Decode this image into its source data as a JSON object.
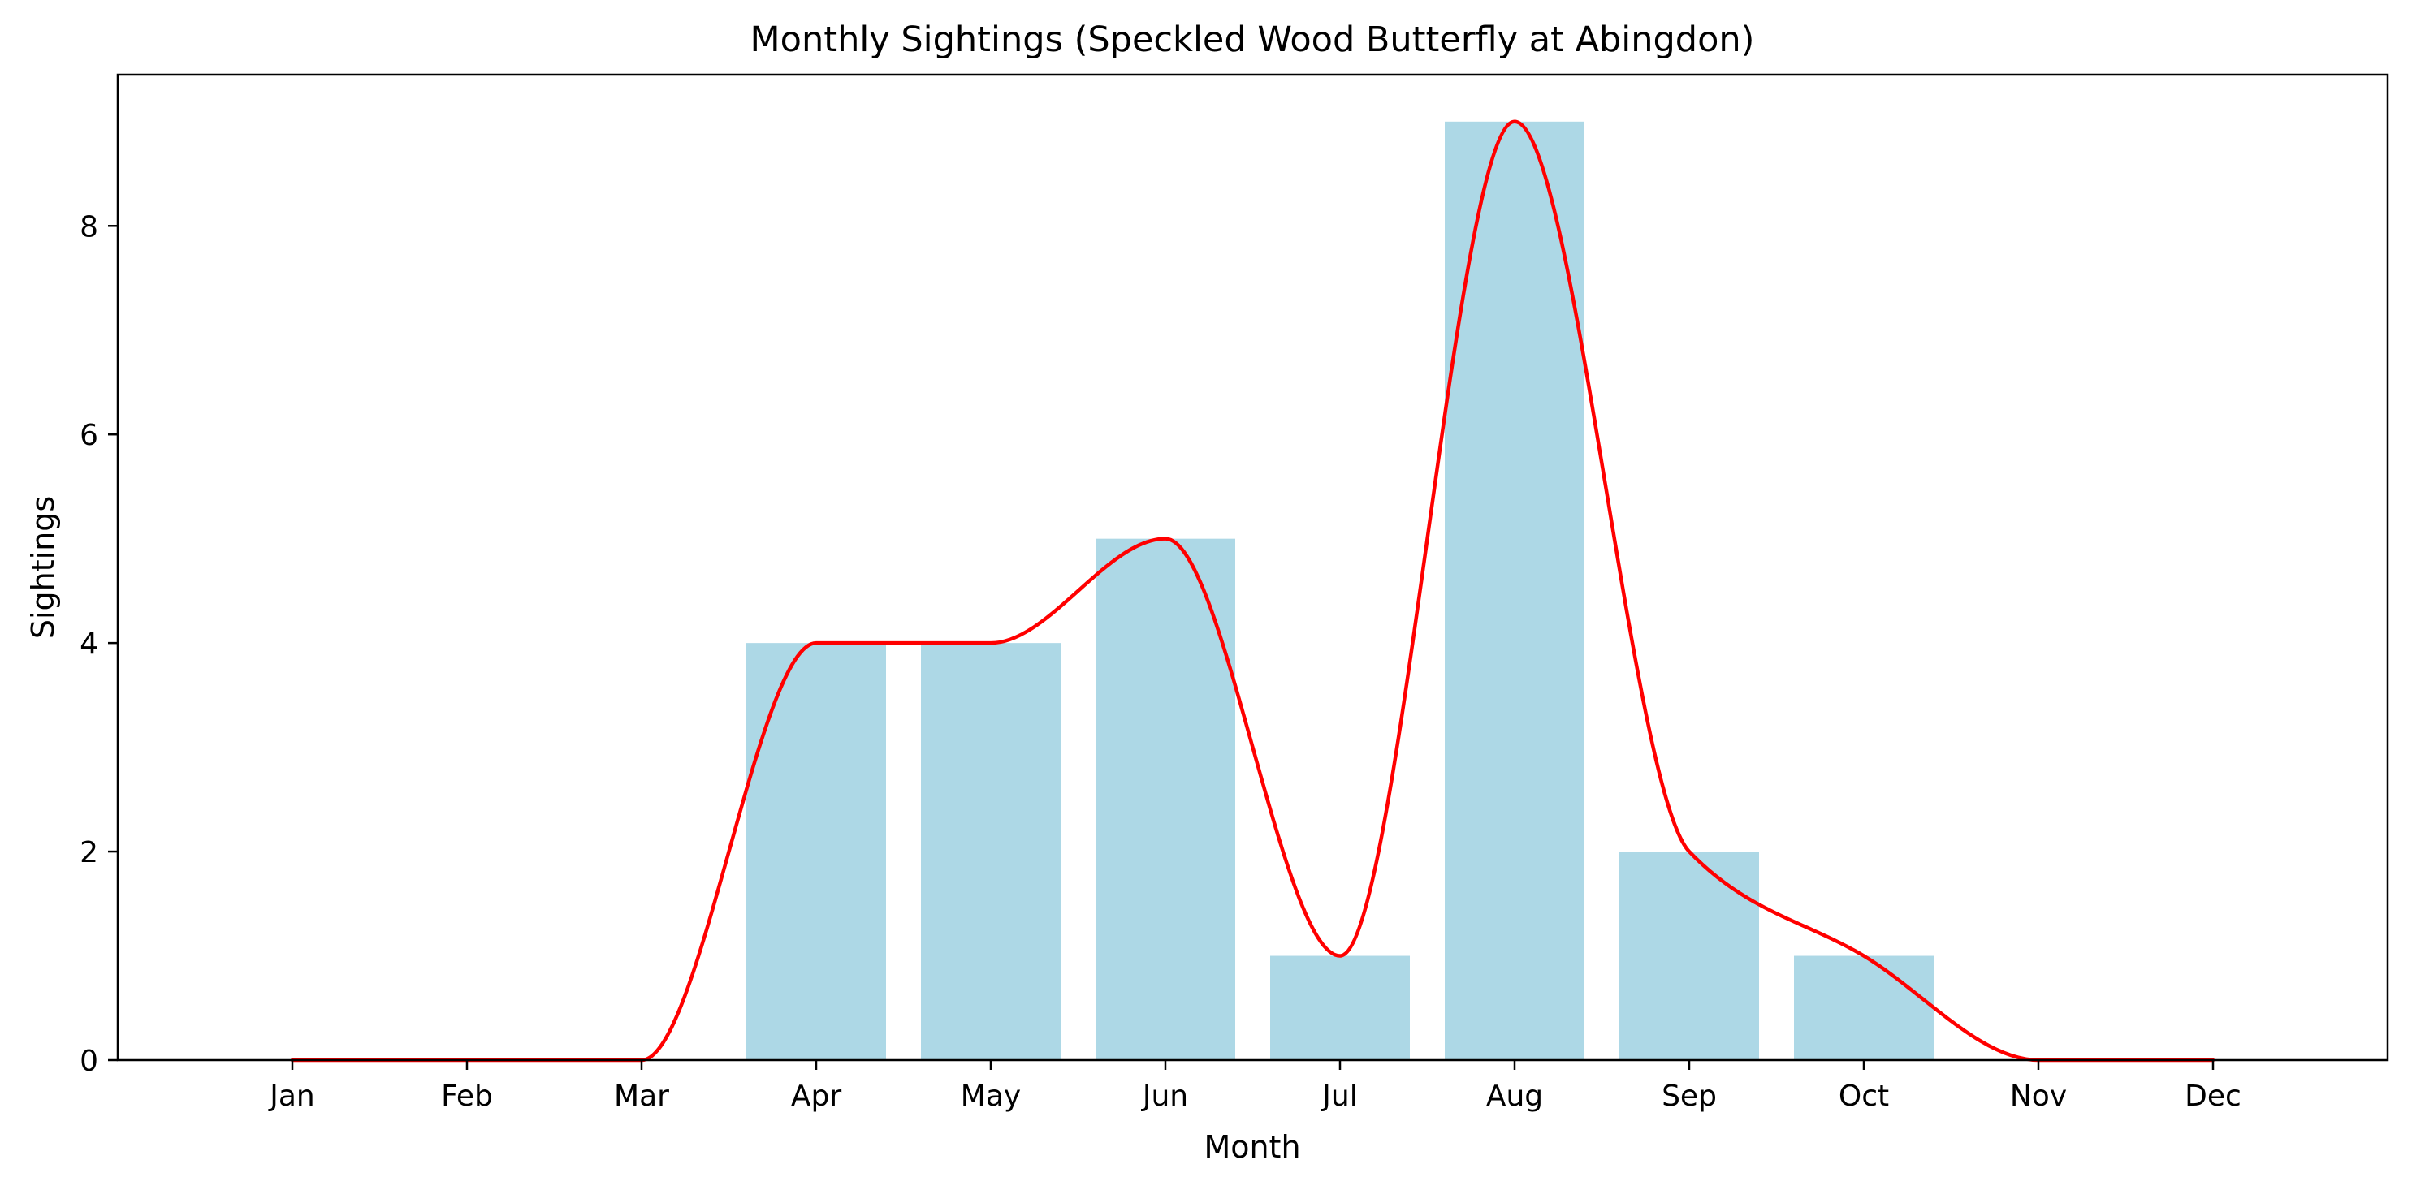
{
  "chart_data": {
    "type": "bar",
    "title": "Monthly Sightings (Speckled Wood Butterfly at Abingdon)",
    "xlabel": "Month",
    "ylabel": "Sightings",
    "categories": [
      "Jan",
      "Feb",
      "Mar",
      "Apr",
      "May",
      "Jun",
      "Jul",
      "Aug",
      "Sep",
      "Oct",
      "Nov",
      "Dec"
    ],
    "series": [
      {
        "kind": "bar",
        "values": [
          0,
          0,
          0,
          4,
          4,
          5,
          1,
          9,
          2,
          1,
          0,
          0
        ],
        "color": "#add8e6"
      },
      {
        "kind": "line",
        "smoothed": true,
        "values": [
          0,
          0,
          0,
          4,
          4,
          5,
          1,
          9,
          2,
          1,
          0,
          0
        ],
        "color": "#ff0000"
      }
    ],
    "ylim": [
      0,
      9.45
    ],
    "yticks": [
      0,
      2,
      4,
      6,
      8
    ],
    "grid": false,
    "legend": "none"
  }
}
